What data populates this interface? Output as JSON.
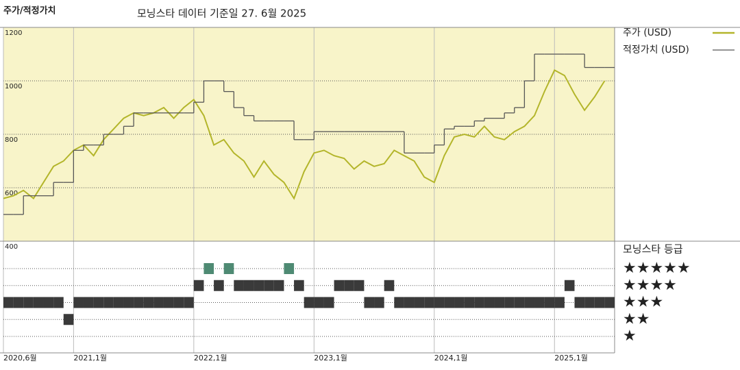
{
  "chart_data": [
    {
      "type": "line",
      "title": "주가/적정가치",
      "subtitle": "모닝스타 데이터 기준일 27. 6월 2025",
      "x": [
        "2020-06",
        "2020-07",
        "2020-08",
        "2020-09",
        "2020-10",
        "2020-11",
        "2020-12",
        "2021-01",
        "2021-02",
        "2021-03",
        "2021-04",
        "2021-05",
        "2021-06",
        "2021-07",
        "2021-08",
        "2021-09",
        "2021-10",
        "2021-11",
        "2021-12",
        "2022-01",
        "2022-02",
        "2022-03",
        "2022-04",
        "2022-05",
        "2022-06",
        "2022-07",
        "2022-08",
        "2022-09",
        "2022-10",
        "2022-11",
        "2022-12",
        "2023-01",
        "2023-02",
        "2023-03",
        "2023-04",
        "2023-05",
        "2023-06",
        "2023-07",
        "2023-08",
        "2023-09",
        "2023-10",
        "2023-11",
        "2023-12",
        "2024-01",
        "2024-02",
        "2024-03",
        "2024-04",
        "2024-05",
        "2024-06",
        "2024-07",
        "2024-08",
        "2024-09",
        "2024-10",
        "2024-11",
        "2024-12",
        "2025-01",
        "2025-02",
        "2025-03",
        "2025-04",
        "2025-05",
        "2025-06"
      ],
      "series": [
        {
          "name": "주가 (USD)",
          "color": "#b3b52a",
          "step": false,
          "values": [
            560,
            570,
            590,
            560,
            620,
            680,
            700,
            740,
            760,
            720,
            780,
            820,
            860,
            880,
            870,
            880,
            900,
            860,
            900,
            930,
            870,
            760,
            780,
            730,
            700,
            640,
            700,
            650,
            620,
            560,
            660,
            730,
            740,
            720,
            710,
            670,
            700,
            680,
            690,
            740,
            720,
            700,
            640,
            620,
            720,
            790,
            800,
            790,
            830,
            790,
            780,
            810,
            830,
            870,
            960,
            1040,
            1020,
            950,
            890,
            940,
            1000
          ]
        },
        {
          "name": "적정가치 (USD)",
          "color": "#555555",
          "step": true,
          "values": [
            500,
            500,
            570,
            570,
            570,
            620,
            620,
            740,
            760,
            760,
            800,
            800,
            830,
            880,
            880,
            880,
            880,
            880,
            880,
            920,
            1000,
            1000,
            960,
            900,
            870,
            850,
            850,
            850,
            850,
            780,
            780,
            810,
            810,
            810,
            810,
            810,
            810,
            810,
            810,
            810,
            730,
            730,
            730,
            760,
            820,
            830,
            830,
            850,
            860,
            860,
            880,
            900,
            1000,
            1100,
            1100,
            1100,
            1100,
            1100,
            1050,
            1050,
            1050
          ]
        }
      ],
      "xlim": [
        "2020-06",
        "2025-07"
      ],
      "xticks": [
        {
          "value": "2020-06",
          "label": "2020,6월"
        },
        {
          "value": "2021-01",
          "label": "2021,1월"
        },
        {
          "value": "2022-01",
          "label": "2022,1월"
        },
        {
          "value": "2023-01",
          "label": "2023,1월"
        },
        {
          "value": "2024-01",
          "label": "2024,1월"
        },
        {
          "value": "2025-01",
          "label": "2025,1월"
        }
      ],
      "ylim": [
        400,
        1200
      ],
      "yticks": [
        400,
        600,
        800,
        1000,
        1200
      ],
      "grid": true,
      "legend": "right"
    },
    {
      "type": "rating",
      "title": "모닝스타 등급",
      "x": [
        "2020-06",
        "2020-07",
        "2020-08",
        "2020-09",
        "2020-10",
        "2020-11",
        "2020-12",
        "2021-01",
        "2021-02",
        "2021-03",
        "2021-04",
        "2021-05",
        "2021-06",
        "2021-07",
        "2021-08",
        "2021-09",
        "2021-10",
        "2021-11",
        "2021-12",
        "2022-01",
        "2022-02",
        "2022-03",
        "2022-04",
        "2022-05",
        "2022-06",
        "2022-07",
        "2022-08",
        "2022-09",
        "2022-10",
        "2022-11",
        "2022-12",
        "2023-01",
        "2023-02",
        "2023-03",
        "2023-04",
        "2023-05",
        "2023-06",
        "2023-07",
        "2023-08",
        "2023-09",
        "2023-10",
        "2023-11",
        "2023-12",
        "2024-01",
        "2024-02",
        "2024-03",
        "2024-04",
        "2024-05",
        "2024-06",
        "2024-07",
        "2024-08",
        "2024-09",
        "2024-10",
        "2024-11",
        "2024-12",
        "2025-01",
        "2025-02",
        "2025-03",
        "2025-04",
        "2025-05",
        "2025-06"
      ],
      "values": [
        3,
        3,
        3,
        3,
        3,
        3,
        2,
        3,
        3,
        3,
        3,
        3,
        3,
        3,
        3,
        3,
        3,
        3,
        3,
        4,
        5,
        4,
        5,
        4,
        4,
        4,
        4,
        4,
        5,
        4,
        3,
        3,
        3,
        4,
        4,
        4,
        3,
        3,
        4,
        3,
        3,
        3,
        3,
        3,
        3,
        3,
        3,
        3,
        3,
        3,
        3,
        3,
        3,
        3,
        3,
        3,
        4,
        3,
        3,
        3,
        3
      ],
      "colors": {
        "5": "#4e8a73",
        "other": "#3a3a3a"
      },
      "yticks": [
        {
          "value": 5,
          "label": "★★★★★"
        },
        {
          "value": 4,
          "label": "★★★★"
        },
        {
          "value": 3,
          "label": "★★★"
        },
        {
          "value": 2,
          "label": "★★"
        },
        {
          "value": 1,
          "label": "★"
        }
      ]
    }
  ]
}
